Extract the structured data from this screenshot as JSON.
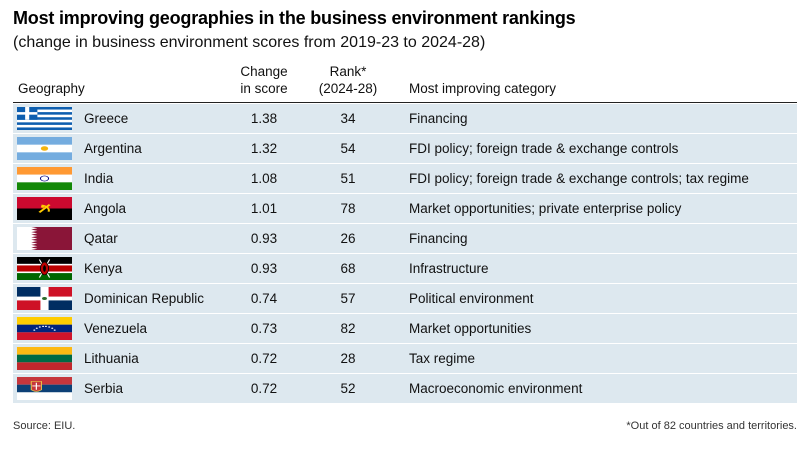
{
  "title": "Most improving geographies in the business environment rankings",
  "subtitle": "(change in business environment scores from 2019-23 to 2024-28)",
  "headers": {
    "geography": "Geography",
    "change_line1": "Change",
    "change_line2": "in score",
    "rank_line1": "Rank*",
    "rank_line2": "(2024-28)",
    "category": "Most improving category"
  },
  "chart_data": {
    "type": "table",
    "title": "Most improving geographies in the business environment rankings",
    "subtitle": "(change in business environment scores from 2019-23 to 2024-28)",
    "columns": [
      "Geography",
      "Change in score",
      "Rank* (2024-28)",
      "Most improving category"
    ],
    "rows": [
      {
        "flag": "greece-flag-icon",
        "geography": "Greece",
        "change": "1.38",
        "rank": "34",
        "category": "Financing"
      },
      {
        "flag": "argentina-flag-icon",
        "geography": "Argentina",
        "change": "1.32",
        "rank": "54",
        "category": "FDI policy; foreign trade & exchange controls"
      },
      {
        "flag": "india-flag-icon",
        "geography": "India",
        "change": "1.08",
        "rank": "51",
        "category": "FDI policy; foreign trade & exchange controls; tax regime"
      },
      {
        "flag": "angola-flag-icon",
        "geography": "Angola",
        "change": "1.01",
        "rank": "78",
        "category": "Market opportunities; private enterprise policy"
      },
      {
        "flag": "qatar-flag-icon",
        "geography": "Qatar",
        "change": "0.93",
        "rank": "26",
        "category": "Financing"
      },
      {
        "flag": "kenya-flag-icon",
        "geography": "Kenya",
        "change": "0.93",
        "rank": "68",
        "category": "Infrastructure"
      },
      {
        "flag": "dominican-republic-flag-icon",
        "geography": "Dominican Republic",
        "change": "0.74",
        "rank": "57",
        "category": "Political environment"
      },
      {
        "flag": "venezuela-flag-icon",
        "geography": "Venezuela",
        "change": "0.73",
        "rank": "82",
        "category": "Market opportunities"
      },
      {
        "flag": "lithuania-flag-icon",
        "geography": "Lithuania",
        "change": "0.72",
        "rank": "28",
        "category": "Tax regime"
      },
      {
        "flag": "serbia-flag-icon",
        "geography": "Serbia",
        "change": "0.72",
        "rank": "52",
        "category": "Macroeconomic environment"
      }
    ]
  },
  "colors": {
    "row_background": "#dde8ef",
    "header_rule": "#222222"
  },
  "footer": {
    "source": "Source: EIU.",
    "note": "*Out of 82 countries and territories."
  }
}
